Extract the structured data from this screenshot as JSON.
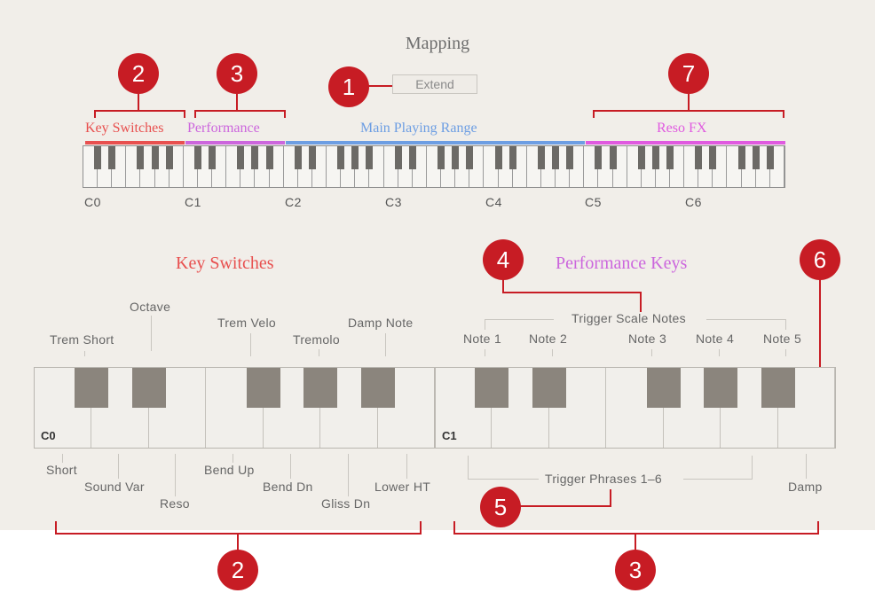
{
  "header": {
    "title": "Mapping",
    "extend_button": "Extend"
  },
  "ranges": {
    "key_switches": "Key Switches",
    "performance": "Performance",
    "main_playing_range": "Main Playing Range",
    "reso_fx": "Reso FX"
  },
  "octaves": [
    "C0",
    "C1",
    "C2",
    "C3",
    "C4",
    "C5",
    "C6"
  ],
  "sections": {
    "key_switches_title": "Key Switches",
    "performance_keys_title": "Performance Keys"
  },
  "big_keyboard": {
    "c0_label": "C0",
    "c1_label": "C1"
  },
  "key_switch_labels": {
    "octave": "Octave",
    "trem_short": "Trem Short",
    "trem_velo": "Trem Velo",
    "tremolo": "Tremolo",
    "damp_note": "Damp Note",
    "short": "Short",
    "sound_var": "Sound Var",
    "reso": "Reso",
    "bend_up": "Bend Up",
    "bend_dn": "Bend Dn",
    "gliss_dn": "Gliss Dn",
    "lower_ht": "Lower HT"
  },
  "performance_labels": {
    "trigger_scale_notes": "Trigger Scale Notes",
    "note_1": "Note 1",
    "note_2": "Note 2",
    "note_3": "Note 3",
    "note_4": "Note 4",
    "note_5": "Note 5",
    "trigger_phrases": "Trigger Phrases 1–6",
    "damp": "Damp"
  },
  "callouts": {
    "c1": "1",
    "c2_top": "2",
    "c3_top": "3",
    "c4": "4",
    "c5": "5",
    "c6": "6",
    "c7": "7",
    "c2_bottom": "2",
    "c3_bottom": "3"
  },
  "colors": {
    "key_switches": "#e8504f",
    "performance": "#cc66dd",
    "main_playing_range": "#6d9ee3",
    "reso_fx": "#e05ae0",
    "callout": "#c71c24",
    "panel": "#f1eee9"
  }
}
